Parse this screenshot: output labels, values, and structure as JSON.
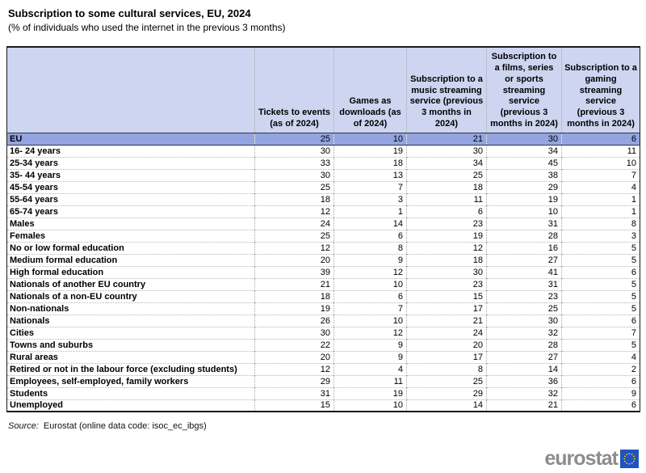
{
  "chart_data": {
    "type": "table",
    "title": "Subscription to some cultural services, EU, 2024",
    "subtitle": "(% of individuals who used the internet in the previous 3 months)",
    "columns": [
      "Tickets to events (as of 2024)",
      "Games as downloads (as of 2024)",
      "Subscription to a music streaming service (previous 3 months in 2024)",
      "Subscription to a films, series or sports streaming service (previous 3 months in 2024)",
      "Subscription to a gaming streaming service (previous 3 months in 2024)"
    ],
    "rows": [
      {
        "label": "EU",
        "values": [
          25,
          10,
          21,
          30,
          6
        ],
        "highlight": true
      },
      {
        "label": "16- 24 years",
        "values": [
          30,
          19,
          30,
          34,
          11
        ]
      },
      {
        "label": "25-34 years",
        "values": [
          33,
          18,
          34,
          45,
          10
        ]
      },
      {
        "label": "35- 44 years",
        "values": [
          30,
          13,
          25,
          38,
          7
        ]
      },
      {
        "label": "45-54 years",
        "values": [
          25,
          7,
          18,
          29,
          4
        ]
      },
      {
        "label": "55-64 years",
        "values": [
          18,
          3,
          11,
          19,
          1
        ]
      },
      {
        "label": "65-74 years",
        "values": [
          12,
          1,
          6,
          10,
          1
        ]
      },
      {
        "label": "Males",
        "values": [
          24,
          14,
          23,
          31,
          8
        ]
      },
      {
        "label": "Females",
        "values": [
          25,
          6,
          19,
          28,
          3
        ]
      },
      {
        "label": "No or low formal education",
        "values": [
          12,
          8,
          12,
          16,
          5
        ]
      },
      {
        "label": "Medium formal education",
        "values": [
          20,
          9,
          18,
          27,
          5
        ]
      },
      {
        "label": "High formal education",
        "values": [
          39,
          12,
          30,
          41,
          6
        ]
      },
      {
        "label": "Nationals of another EU country",
        "values": [
          21,
          10,
          23,
          31,
          5
        ]
      },
      {
        "label": "Nationals of a non-EU country",
        "values": [
          18,
          6,
          15,
          23,
          5
        ]
      },
      {
        "label": "Non-nationals",
        "values": [
          19,
          7,
          17,
          25,
          5
        ]
      },
      {
        "label": "Nationals",
        "values": [
          26,
          10,
          21,
          30,
          6
        ]
      },
      {
        "label": "Cities",
        "values": [
          30,
          12,
          24,
          32,
          7
        ]
      },
      {
        "label": "Towns and suburbs",
        "values": [
          22,
          9,
          20,
          28,
          5
        ]
      },
      {
        "label": "Rural areas",
        "values": [
          20,
          9,
          17,
          27,
          4
        ]
      },
      {
        "label": "Retired or not in the labour force (excluding students)",
        "values": [
          12,
          4,
          8,
          14,
          2
        ]
      },
      {
        "label": "Employees, self-employed, family workers",
        "values": [
          29,
          11,
          25,
          36,
          6
        ]
      },
      {
        "label": "Students",
        "values": [
          31,
          19,
          29,
          32,
          9
        ]
      },
      {
        "label": "Unemployed",
        "values": [
          15,
          10,
          14,
          21,
          6
        ]
      }
    ]
  },
  "source": {
    "prefix": "Source:",
    "text": "Eurostat (online data code: isoc_ec_ibgs)"
  },
  "logo": {
    "text": "eurostat"
  },
  "colors": {
    "header_bg": "#cdd5f0",
    "eu_row_bg": "#93a4e0",
    "table_border": "#1a1a1a",
    "logo_text_gray": "#8c8c8c",
    "logo_flag_blue": "#2052c2",
    "logo_star_yellow": "#ffcc00"
  }
}
